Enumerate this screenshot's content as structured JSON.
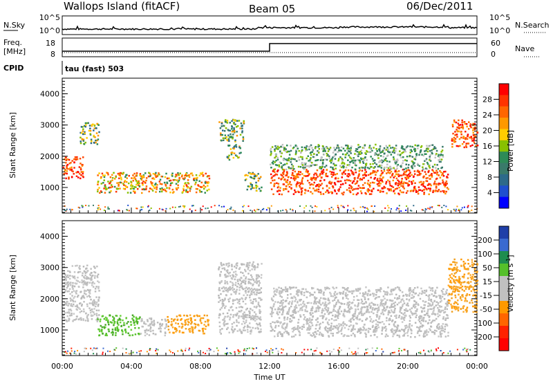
{
  "header": {
    "station": "Wallops Island (fitACF)",
    "beam": "Beam 05",
    "date": "06/Dec/2011"
  },
  "nsky_panel": {
    "left_label": "N.Sky",
    "right_label": "N.Search",
    "left_ticks": [
      "10^5",
      "10^0"
    ],
    "right_ticks": [
      "10^5",
      "10^0"
    ]
  },
  "freq_panel": {
    "left_label": "Freq.",
    "unit_label": "[MHz]",
    "left_ticks": [
      "18",
      "8"
    ],
    "right_label": "Nave",
    "right_ticks": [
      "60",
      "0"
    ],
    "step_time_hours": 12.0
  },
  "cpid": {
    "label": "CPID",
    "mode": "tau (fast) 503"
  },
  "x_axis": {
    "label": "Time UT",
    "ticks": [
      "00:00",
      "04:00",
      "08:00",
      "12:00",
      "16:00",
      "20:00",
      "00:00"
    ],
    "range_hours": [
      0,
      24
    ]
  },
  "chart_data": [
    {
      "type": "heatmap",
      "title": "",
      "ylabel": "Slant Range [km]",
      "xlabel": "",
      "ylim": [
        180,
        4500
      ],
      "yticks": [
        "1000",
        "2000",
        "3000",
        "4000"
      ],
      "colorbar": {
        "label": "Power [dB]",
        "ticks": [
          "28",
          "24",
          "20",
          "16",
          "12",
          "8",
          "4"
        ],
        "colors": [
          "#ff0000",
          "#ff3300",
          "#ff6600",
          "#ff9900",
          "#ffcc00",
          "#88c000",
          "#2e8b57",
          "#3a7a6a",
          "#2d6a8a",
          "#1f4fcf",
          "#0000ff"
        ]
      },
      "regions": [
        {
          "t": [
            0.0,
            1.2
          ],
          "r": [
            1300,
            2000
          ],
          "level": "high"
        },
        {
          "t": [
            1.0,
            2.1
          ],
          "r": [
            2400,
            3100
          ],
          "level": "mid"
        },
        {
          "t": [
            2.0,
            8.5
          ],
          "r": [
            850,
            1500
          ],
          "level": "mid-high"
        },
        {
          "t": [
            9.0,
            10.5
          ],
          "r": [
            2500,
            3200
          ],
          "level": "mid"
        },
        {
          "t": [
            9.5,
            10.3
          ],
          "r": [
            1900,
            2400
          ],
          "level": "mid"
        },
        {
          "t": [
            10.5,
            11.5
          ],
          "r": [
            900,
            1500
          ],
          "level": "mid"
        },
        {
          "t": [
            12.0,
            22.3
          ],
          "r": [
            800,
            1600
          ],
          "level": "high"
        },
        {
          "t": [
            12.0,
            22.0
          ],
          "r": [
            1600,
            2400
          ],
          "level": "low"
        },
        {
          "t": [
            22.5,
            24.0
          ],
          "r": [
            2300,
            3200
          ],
          "level": "high"
        }
      ]
    },
    {
      "type": "heatmap",
      "title": "",
      "ylabel": "Slant Range [km]",
      "xlabel": "Time UT",
      "ylim": [
        180,
        4500
      ],
      "yticks": [
        "1000",
        "2000",
        "3000",
        "4000"
      ],
      "colorbar": {
        "label": "Velocity [m s^-1]",
        "ticks": [
          "200",
          "100",
          "50",
          "15",
          "-15",
          "-50",
          "-100",
          "-200"
        ],
        "colors": [
          "#1f3fa8",
          "#3a6ad0",
          "#1e8c4e",
          "#55c02a",
          "#c0c0c0",
          "#c0c0c0",
          "#ff9900",
          "#ff6600",
          "#ff2200",
          "#ff0000"
        ]
      },
      "regions": [
        {
          "t": [
            0.0,
            2.1
          ],
          "r": [
            1300,
            3100
          ],
          "level": "-15 to 15"
        },
        {
          "t": [
            2.0,
            4.5
          ],
          "r": [
            850,
            1500
          ],
          "level": "15 to 50"
        },
        {
          "t": [
            4.5,
            6.0
          ],
          "r": [
            850,
            1400
          ],
          "level": "-15 to 15"
        },
        {
          "t": [
            6.0,
            8.5
          ],
          "r": [
            900,
            1500
          ],
          "level": "-50 to -15"
        },
        {
          "t": [
            9.0,
            11.5
          ],
          "r": [
            900,
            3200
          ],
          "level": "-15 to 15"
        },
        {
          "t": [
            12.0,
            22.3
          ],
          "r": [
            800,
            2400
          ],
          "level": "-15 to 15"
        },
        {
          "t": [
            22.3,
            24.0
          ],
          "r": [
            1600,
            3300
          ],
          "level": "-50 to -15"
        }
      ]
    }
  ]
}
